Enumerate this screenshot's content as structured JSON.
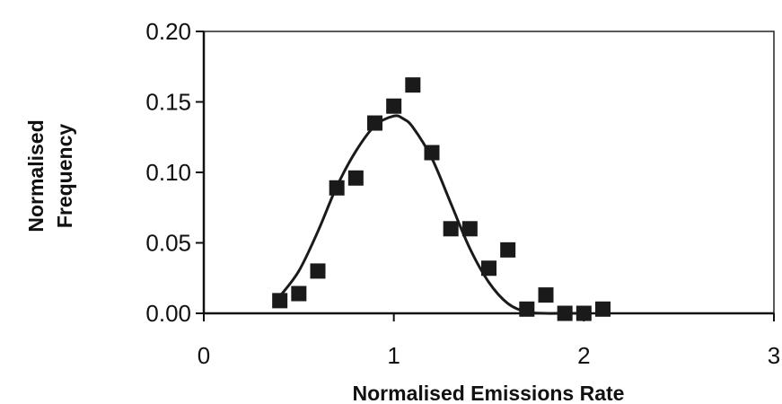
{
  "chart_data": {
    "type": "scatter",
    "title": "",
    "xlabel": "Normalised Emissions Rate",
    "ylabel": [
      "Normalised",
      "Frequency"
    ],
    "xlim": [
      0,
      3
    ],
    "ylim": [
      0,
      0.2
    ],
    "x_ticks": [
      0,
      1,
      2,
      3
    ],
    "y_ticks": [
      0.0,
      0.05,
      0.1,
      0.15,
      0.2
    ],
    "x_tick_labels": [
      "0",
      "1",
      "2",
      "3"
    ],
    "y_tick_labels": [
      "0.00",
      "0.05",
      "0.10",
      "0.15",
      "0.20"
    ],
    "grid": false,
    "legend": "none",
    "marker_color": "#1a1a1a",
    "line_color": "#1a1a1a",
    "series": [
      {
        "kind": "points",
        "x": [
          0.4,
          0.5,
          0.6,
          0.7,
          0.8,
          0.9,
          1.0,
          1.1,
          1.2,
          1.3,
          1.4,
          1.5,
          1.6,
          1.7,
          1.8,
          1.9,
          2.0,
          2.1
        ],
        "y": [
          0.009,
          0.014,
          0.03,
          0.089,
          0.096,
          0.135,
          0.147,
          0.162,
          0.114,
          0.06,
          0.06,
          0.032,
          0.045,
          0.003,
          0.013,
          0.0,
          0.0,
          0.003
        ]
      },
      {
        "kind": "fitted-curve",
        "x": [
          0.4,
          0.5,
          0.6,
          0.7,
          0.8,
          0.9,
          1.0,
          1.05,
          1.1,
          1.2,
          1.3,
          1.4,
          1.5,
          1.6,
          1.7,
          1.8,
          1.9,
          2.0
        ],
        "y": [
          0.012,
          0.03,
          0.058,
          0.09,
          0.115,
          0.133,
          0.14,
          0.138,
          0.132,
          0.11,
          0.078,
          0.046,
          0.022,
          0.007,
          0.001,
          0.0,
          0.0,
          0.0
        ]
      }
    ]
  }
}
